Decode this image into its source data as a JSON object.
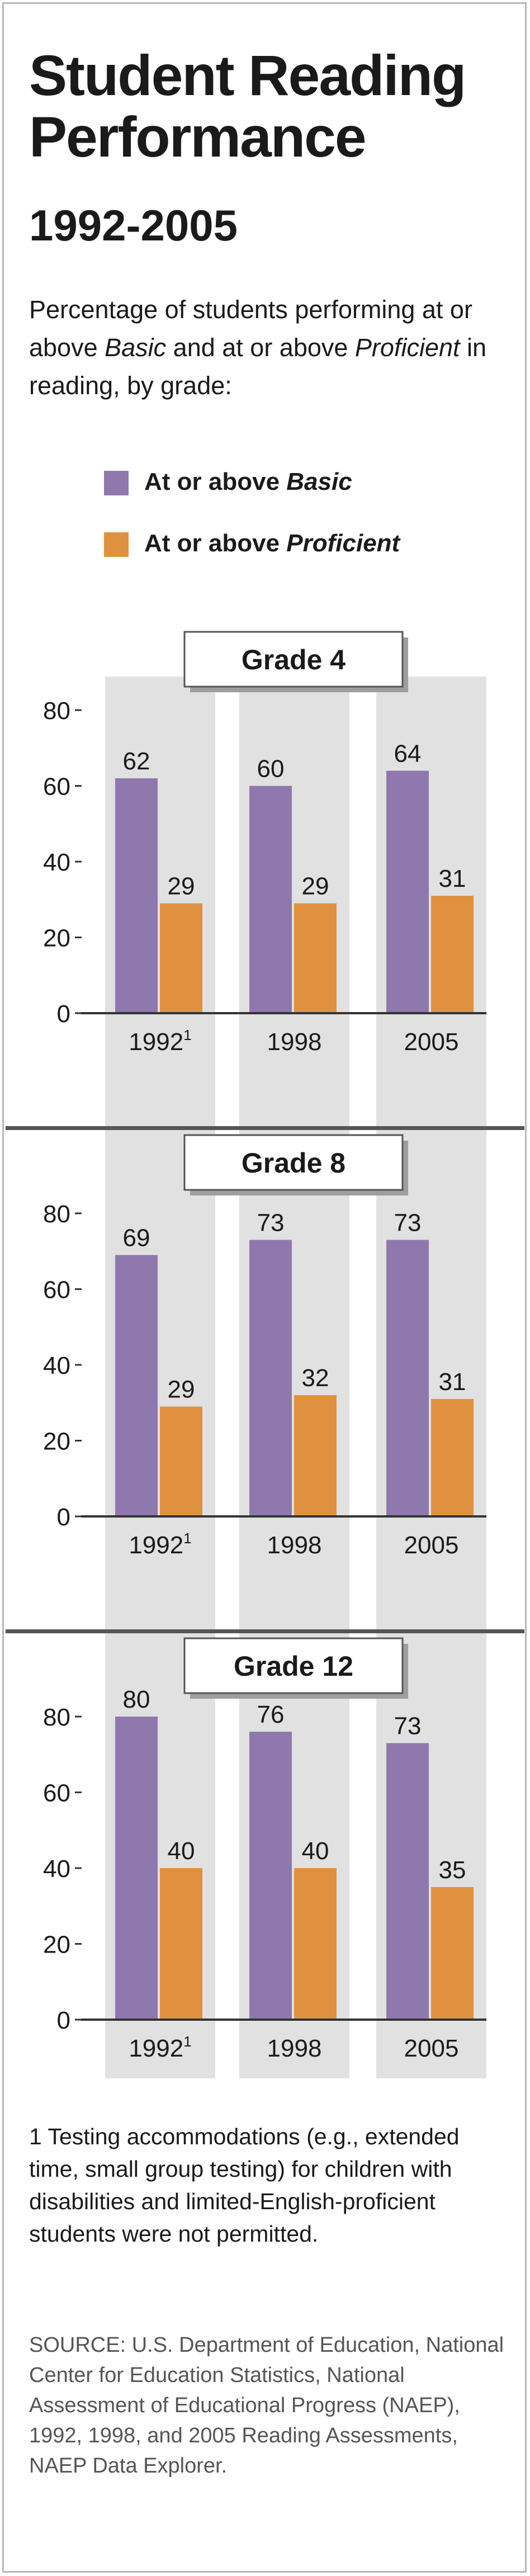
{
  "header": {
    "title": "Student Reading Performance",
    "years": "1992-2005",
    "desc_part1": "Percentage of students performing at or above ",
    "desc_basic": "Basic",
    "desc_part2": " and at or above ",
    "desc_proficient": "Proficient",
    "desc_part3": " in reading, by grade:"
  },
  "legend": {
    "basic_prefix": "At or above ",
    "basic_italic": "Basic",
    "proficient_prefix": "At or above ",
    "proficient_italic": "Proficient"
  },
  "colors": {
    "basic": "#8f78ad",
    "proficient": "#e0913f",
    "column_band": "#e1e1e1",
    "axis": "#333333",
    "divider": "#555555"
  },
  "chart_data": [
    {
      "type": "bar",
      "title": "Grade 4",
      "categories": [
        "1992",
        "1998",
        "2005"
      ],
      "category_footnote": {
        "1992": "1"
      },
      "ylim": [
        0,
        80
      ],
      "yticks": [
        0,
        20,
        40,
        60,
        80
      ],
      "series": [
        {
          "name": "At or above Basic",
          "values": [
            62,
            60,
            64
          ]
        },
        {
          "name": "At or above Proficient",
          "values": [
            29,
            29,
            31
          ]
        }
      ]
    },
    {
      "type": "bar",
      "title": "Grade 8",
      "categories": [
        "1992",
        "1998",
        "2005"
      ],
      "category_footnote": {
        "1992": "1"
      },
      "ylim": [
        0,
        80
      ],
      "yticks": [
        0,
        20,
        40,
        60,
        80
      ],
      "series": [
        {
          "name": "At or above Basic",
          "values": [
            69,
            73,
            73
          ]
        },
        {
          "name": "At or above Proficient",
          "values": [
            29,
            32,
            31
          ]
        }
      ]
    },
    {
      "type": "bar",
      "title": "Grade 12",
      "categories": [
        "1992",
        "1998",
        "2005"
      ],
      "category_footnote": {
        "1992": "1"
      },
      "ylim": [
        0,
        80
      ],
      "yticks": [
        0,
        20,
        40,
        60,
        80
      ],
      "series": [
        {
          "name": "At or above Basic",
          "values": [
            80,
            76,
            73
          ]
        },
        {
          "name": "At or above Proficient",
          "values": [
            40,
            40,
            35
          ]
        }
      ]
    }
  ],
  "footnote": "1 Testing accommodations (e.g., extended time, small group testing) for children with disabilities and limited-English-proficient students were not permitted.",
  "source": "SOURCE: U.S. Department of Education, National Center for Education Statistics, National Assessment of Educational Progress (NAEP), 1992, 1998, and 2005 Reading Assessments, NAEP Data Explorer."
}
